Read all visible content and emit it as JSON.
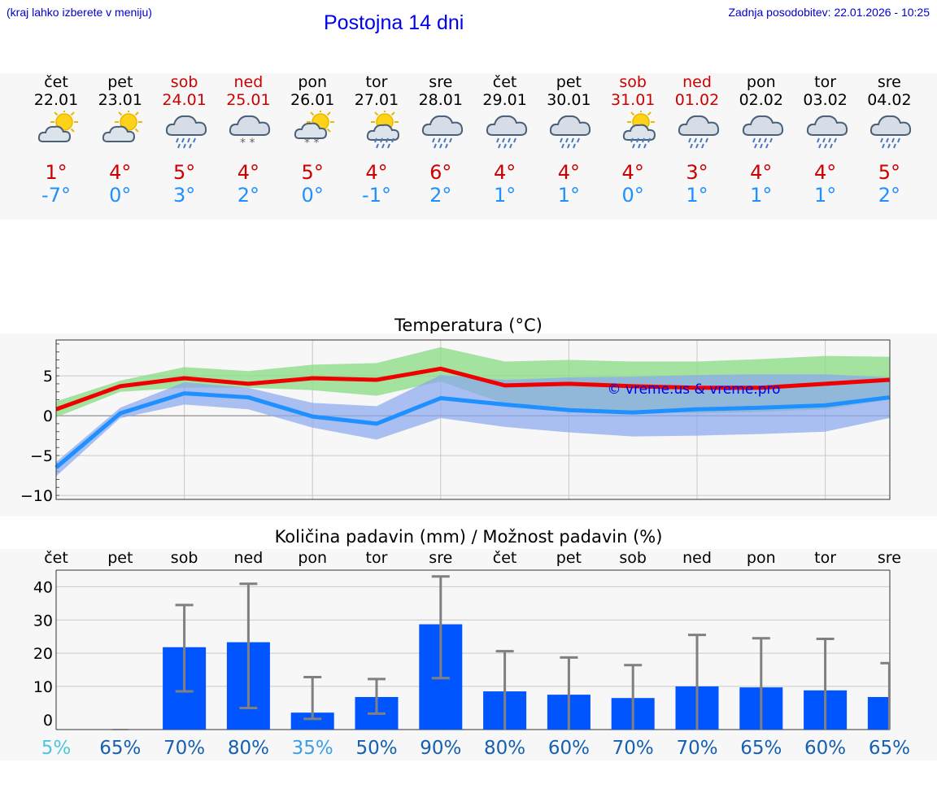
{
  "header": {
    "hint": "(kraj lahko izberete v meniju)",
    "title": "Postojna 14 dni",
    "updated": "Zadnja posodobitev: 22.01.2026 - 10:25"
  },
  "days": [
    {
      "name": "čet",
      "date": "22.01",
      "weekend": false,
      "icon": "sun-cloud-icon",
      "tmax": "1°",
      "tmin": "-7°"
    },
    {
      "name": "pet",
      "date": "23.01",
      "weekend": false,
      "icon": "sun-cloud-icon",
      "tmax": "4°",
      "tmin": "0°"
    },
    {
      "name": "sob",
      "date": "24.01",
      "weekend": true,
      "icon": "cloud-rain-icon",
      "tmax": "5°",
      "tmin": "3°"
    },
    {
      "name": "ned",
      "date": "25.01",
      "weekend": true,
      "icon": "cloud-snow-icon",
      "tmax": "4°",
      "tmin": "2°"
    },
    {
      "name": "pon",
      "date": "26.01",
      "weekend": false,
      "icon": "sun-cloud-snow-icon",
      "tmax": "5°",
      "tmin": "0°"
    },
    {
      "name": "tor",
      "date": "27.01",
      "weekend": false,
      "icon": "sun-cloud-rain-icon",
      "tmax": "4°",
      "tmin": "-1°"
    },
    {
      "name": "sre",
      "date": "28.01",
      "weekend": false,
      "icon": "cloud-rain-icon",
      "tmax": "6°",
      "tmin": "2°"
    },
    {
      "name": "čet",
      "date": "29.01",
      "weekend": false,
      "icon": "cloud-rain-icon",
      "tmax": "4°",
      "tmin": "1°"
    },
    {
      "name": "pet",
      "date": "30.01",
      "weekend": false,
      "icon": "cloud-rain-icon",
      "tmax": "4°",
      "tmin": "1°"
    },
    {
      "name": "sob",
      "date": "31.01",
      "weekend": true,
      "icon": "sun-cloud-rain-icon",
      "tmax": "4°",
      "tmin": "0°"
    },
    {
      "name": "ned",
      "date": "01.02",
      "weekend": true,
      "icon": "cloud-rain-icon",
      "tmax": "3°",
      "tmin": "1°"
    },
    {
      "name": "pon",
      "date": "02.02",
      "weekend": false,
      "icon": "cloud-rain-icon",
      "tmax": "4°",
      "tmin": "1°"
    },
    {
      "name": "tor",
      "date": "03.02",
      "weekend": false,
      "icon": "cloud-rain-icon",
      "tmax": "4°",
      "tmin": "1°"
    },
    {
      "name": "sre",
      "date": "04.02",
      "weekend": false,
      "icon": "cloud-rain-icon",
      "tmax": "5°",
      "tmin": "2°"
    }
  ],
  "colors": {
    "max_line": "#ee0000",
    "min_line": "#1e90ff",
    "max_band": "#8fdc8a",
    "min_band": "#8aa8ee",
    "bar": "#0055ff",
    "whisker": "#808080",
    "prob_low": "#4fc6e0",
    "prob_mid": "#3b9ee8",
    "prob_high": "#1560b0"
  },
  "chart_data": [
    {
      "type": "line",
      "title": "Temperatura (°C)",
      "ylim": [
        -10.5,
        9.5
      ],
      "yticks": [
        -10,
        -5,
        0,
        5
      ],
      "ytick_labels": [
        "−10",
        "−5",
        "0",
        "5"
      ],
      "x": [
        0,
        1,
        2,
        3,
        4,
        5,
        6,
        7,
        8,
        9,
        10,
        11,
        12,
        13
      ],
      "series": [
        {
          "name": "max",
          "values": [
            0.8,
            3.7,
            4.7,
            4.0,
            4.7,
            4.5,
            5.9,
            3.8,
            4.0,
            3.7,
            3.5,
            3.5,
            4.0,
            4.5
          ]
        },
        {
          "name": "min",
          "values": [
            -6.5,
            0.3,
            2.8,
            2.3,
            -0.1,
            -1.0,
            2.2,
            1.4,
            0.7,
            0.4,
            0.8,
            1.0,
            1.3,
            2.3
          ]
        }
      ],
      "bands": [
        {
          "name": "max_range",
          "low": [
            -0.2,
            3.0,
            3.5,
            3.5,
            3.2,
            2.5,
            4.3,
            1.5,
            0.8,
            0.6,
            0.3,
            0.5,
            0.8,
            2.0
          ],
          "high": [
            1.8,
            4.4,
            6.1,
            5.6,
            6.4,
            6.6,
            8.6,
            6.8,
            7.0,
            6.8,
            6.8,
            7.1,
            7.5,
            7.4
          ]
        },
        {
          "name": "min_range",
          "low": [
            -7.6,
            -0.3,
            1.4,
            0.8,
            -1.5,
            -3.0,
            -0.3,
            -1.4,
            -2.1,
            -2.6,
            -2.5,
            -2.3,
            -2.0,
            -0.3
          ],
          "high": [
            -5.8,
            1.0,
            4.2,
            3.5,
            1.6,
            1.2,
            5.1,
            4.5,
            4.8,
            4.9,
            5.1,
            5.2,
            5.2,
            4.8
          ]
        }
      ],
      "watermark": "© vreme.us & vreme.pro"
    },
    {
      "type": "bar",
      "title": "Količina padavin (mm) / Možnost padavin (%)",
      "categories": [
        "čet",
        "pet",
        "sob",
        "ned",
        "pon",
        "tor",
        "sre",
        "čet",
        "pet",
        "sob",
        "ned",
        "pon",
        "tor",
        "sre"
      ],
      "ylim": [
        -3,
        45
      ],
      "yticks": [
        0,
        10,
        20,
        30,
        40
      ],
      "ytick_labels": [
        "0",
        "10",
        "20",
        "30",
        "40"
      ],
      "values": [
        0,
        0,
        21.8,
        23.3,
        2.1,
        6.8,
        28.7,
        8.5,
        7.5,
        6.5,
        10.0,
        9.7,
        8.8,
        6.8
      ],
      "err_low": [
        0,
        0,
        8.5,
        3.5,
        0.2,
        1.8,
        12.5,
        0,
        0,
        0,
        0,
        0,
        0,
        0
      ],
      "err_high": [
        0,
        0,
        34.5,
        40.9,
        12.8,
        12.2,
        43.1,
        20.6,
        18.7,
        16.4,
        25.5,
        24.5,
        24.3,
        17.0
      ],
      "probability": [
        "5%",
        "65%",
        "70%",
        "80%",
        "35%",
        "50%",
        "90%",
        "80%",
        "60%",
        "70%",
        "70%",
        "65%",
        "60%",
        "65%"
      ],
      "probability_values": [
        5,
        65,
        70,
        80,
        35,
        50,
        90,
        80,
        60,
        70,
        70,
        65,
        60,
        65
      ]
    }
  ]
}
